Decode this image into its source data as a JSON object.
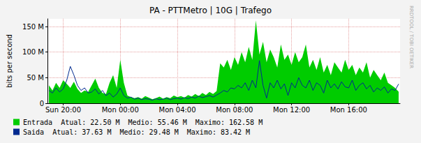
{
  "chart_data": {
    "type": "area",
    "title": "PA - PTTMetro | 10G | Trafego",
    "y_label": "bits per second",
    "annotations": [
      "RRDTOOL / TOBI OETIKER"
    ],
    "x": [
      19,
      19.25,
      19.5,
      19.75,
      20,
      20.25,
      20.5,
      20.75,
      21,
      21.25,
      21.5,
      21.75,
      22,
      22.25,
      22.5,
      22.75,
      23,
      23.25,
      23.5,
      23.75,
      24,
      24.25,
      24.5,
      24.75,
      25,
      25.25,
      25.5,
      25.75,
      26,
      26.25,
      26.5,
      26.75,
      27,
      27.25,
      27.5,
      27.75,
      28,
      28.25,
      28.5,
      28.75,
      29,
      29.25,
      29.5,
      29.75,
      30,
      30.25,
      30.5,
      30.75,
      31,
      31.25,
      31.5,
      31.75,
      32,
      32.25,
      32.5,
      32.75,
      33,
      33.25,
      33.5,
      33.75,
      34,
      34.25,
      34.5,
      34.75,
      35,
      35.25,
      35.5,
      35.75,
      36,
      36.25,
      36.5,
      36.75,
      37,
      37.25,
      37.5,
      37.75,
      38,
      38.25,
      38.5,
      38.75,
      39,
      39.25,
      39.5,
      39.75,
      40,
      40.25,
      40.5,
      40.75,
      41,
      41.25,
      41.5,
      41.75,
      42,
      42.25,
      42.5,
      42.75,
      43,
      43.25,
      43.5
    ],
    "series": [
      {
        "name": "Entrada",
        "type": "area",
        "color": "#00cc00",
        "stats": "Atual: 22.50 M  Medio: 55.46 M  Maximo: 162.58 M",
        "values": [
          35,
          25,
          40,
          30,
          45,
          38,
          30,
          42,
          28,
          20,
          25,
          22,
          35,
          48,
          30,
          20,
          18,
          40,
          55,
          30,
          85,
          40,
          15,
          12,
          10,
          12,
          9,
          14,
          11,
          8,
          10,
          13,
          9,
          12,
          10,
          15,
          12,
          14,
          11,
          16,
          13,
          18,
          14,
          20,
          16,
          22,
          18,
          24,
          78,
          70,
          85,
          65,
          90,
          75,
          100,
          80,
          110,
          85,
          162,
          95,
          120,
          80,
          105,
          90,
          70,
          115,
          85,
          95,
          75,
          100,
          80,
          90,
          115,
          70,
          85,
          65,
          90,
          60,
          75,
          55,
          80,
          70,
          60,
          85,
          65,
          75,
          55,
          70,
          60,
          80,
          50,
          65,
          55,
          45,
          60,
          40,
          35,
          30,
          22.5
        ]
      },
      {
        "name": "Saida",
        "type": "line",
        "color": "#002a8f",
        "stats": "Atual: 37.63 M  Medio: 29.48 M  Maximo: 83.42 M",
        "values": [
          25,
          20,
          30,
          22,
          28,
          45,
          72,
          55,
          35,
          25,
          30,
          20,
          22,
          28,
          18,
          25,
          15,
          20,
          12,
          18,
          30,
          15,
          10,
          12,
          8,
          10,
          7,
          9,
          8,
          6,
          9,
          7,
          8,
          10,
          7,
          9,
          10,
          8,
          11,
          9,
          12,
          10,
          14,
          11,
          13,
          15,
          12,
          16,
          20,
          25,
          22,
          30,
          28,
          35,
          30,
          40,
          25,
          45,
          30,
          83.42,
          35,
          10,
          40,
          30,
          45,
          28,
          38,
          15,
          40,
          30,
          50,
          35,
          30,
          45,
          25,
          40,
          35,
          20,
          45,
          30,
          38,
          28,
          42,
          32,
          30,
          45,
          25,
          35,
          40,
          28,
          35,
          22,
          30,
          25,
          32,
          20,
          28,
          25,
          37.63
        ]
      }
    ],
    "xlim": [
      18.9,
      43.6
    ],
    "xticks": [
      {
        "value": 20,
        "label": "Sun 20:00"
      },
      {
        "value": 24,
        "label": "Mon 00:00"
      },
      {
        "value": 28,
        "label": "Mon 04:00"
      },
      {
        "value": 32,
        "label": "Mon 08:00"
      },
      {
        "value": 36,
        "label": "Mon 12:00"
      },
      {
        "value": 40,
        "label": "Mon 16:00"
      }
    ],
    "ylim": [
      0,
      165
    ],
    "yticks": [
      0,
      {
        "value": 50,
        "label": "50 M"
      },
      {
        "value": 100,
        "label": "100 M"
      },
      {
        "value": 150,
        "label": "150 M"
      }
    ],
    "grid": true,
    "legend": "bottom-left"
  }
}
